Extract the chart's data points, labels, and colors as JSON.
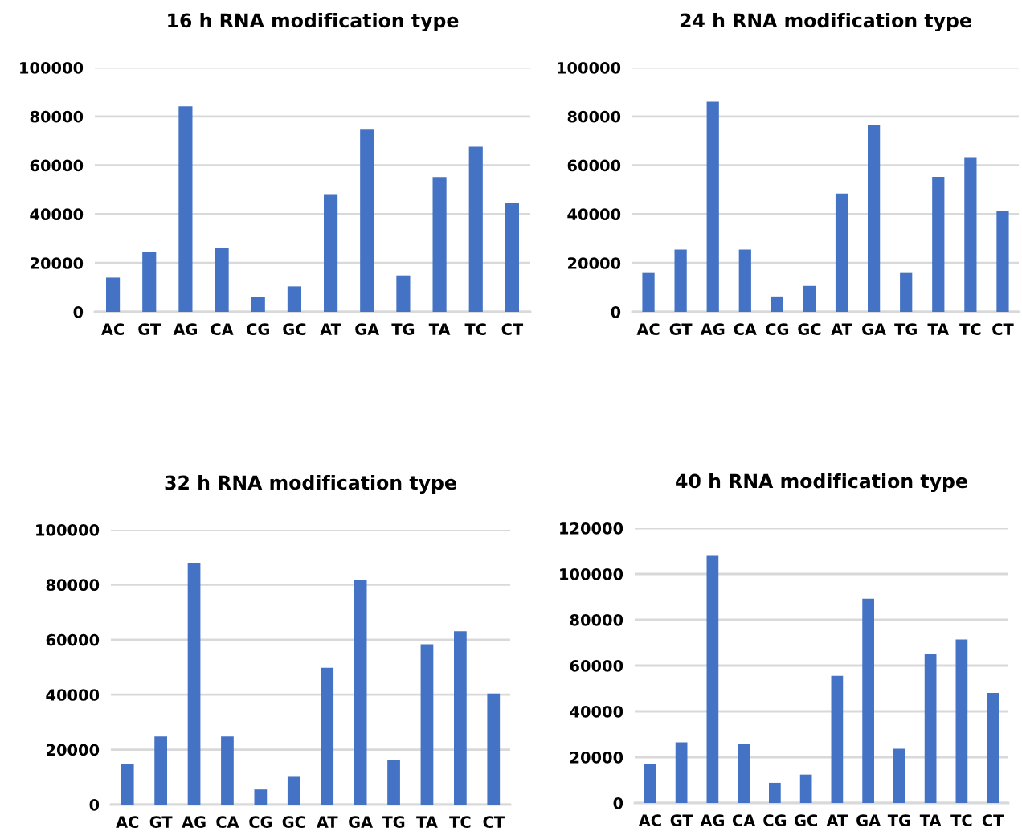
{
  "chart_data": [
    {
      "type": "bar",
      "title": "16 h RNA modification type",
      "categories": [
        "AC",
        "GT",
        "AG",
        "CA",
        "CG",
        "GC",
        "AT",
        "GA",
        "TG",
        "TA",
        "TC",
        "CT"
      ],
      "values": [
        14000,
        24500,
        84100,
        26200,
        6000,
        10400,
        48200,
        74600,
        14900,
        55200,
        67600,
        44600
      ],
      "color": "#4472c4",
      "ylim": [
        0,
        100000
      ],
      "yticks": [
        0,
        20000,
        40000,
        60000,
        80000,
        100000
      ],
      "grid": "y"
    },
    {
      "type": "bar",
      "title": "24 h RNA modification type",
      "categories": [
        "AC",
        "GT",
        "AG",
        "CA",
        "CG",
        "GC",
        "AT",
        "GA",
        "TG",
        "TA",
        "TC",
        "CT"
      ],
      "values": [
        15900,
        25500,
        86000,
        25500,
        6300,
        10600,
        48400,
        76400,
        15900,
        55300,
        63300,
        41400
      ],
      "color": "#4472c4",
      "ylim": [
        0,
        100000
      ],
      "yticks": [
        0,
        20000,
        40000,
        60000,
        80000,
        100000
      ],
      "grid": "y"
    },
    {
      "type": "bar",
      "title": "32 h RNA modification type",
      "categories": [
        "AC",
        "GT",
        "AG",
        "CA",
        "CG",
        "GC",
        "AT",
        "GA",
        "TG",
        "TA",
        "TC",
        "CT"
      ],
      "values": [
        14800,
        24800,
        87800,
        24800,
        5500,
        10100,
        49800,
        81600,
        16300,
        58300,
        63100,
        40400
      ],
      "color": "#4472c4",
      "ylim": [
        0,
        100000
      ],
      "yticks": [
        0,
        20000,
        40000,
        60000,
        80000,
        100000
      ],
      "grid": "y"
    },
    {
      "type": "bar",
      "title": "40 h RNA modification type",
      "categories": [
        "AC",
        "GT",
        "AG",
        "CA",
        "CG",
        "GC",
        "AT",
        "GA",
        "TG",
        "TA",
        "TC",
        "CT"
      ],
      "values": [
        17200,
        26500,
        107900,
        25600,
        8800,
        12400,
        55500,
        89200,
        23700,
        64900,
        71400,
        48100
      ],
      "color": "#4472c4",
      "ylim": [
        0,
        120000
      ],
      "yticks": [
        0,
        20000,
        40000,
        60000,
        80000,
        100000,
        120000
      ],
      "grid": "y"
    }
  ]
}
